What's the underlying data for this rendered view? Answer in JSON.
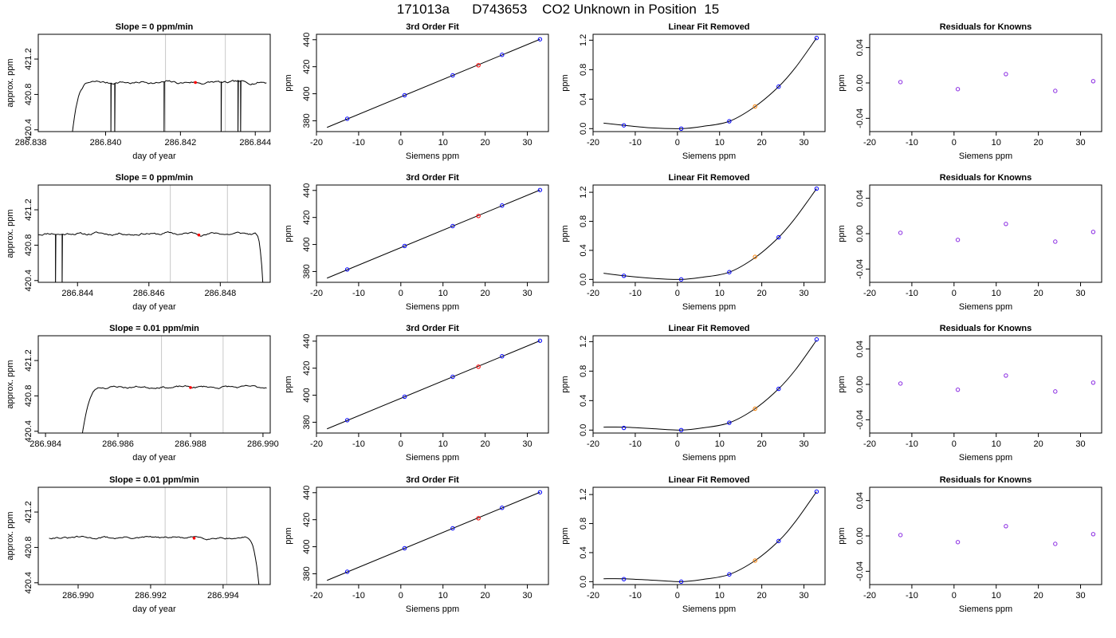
{
  "title": "171013a      D743653    CO2 Unknown in Position  15",
  "labels": {
    "trace_xlabel": "day of year",
    "trace_ylabel": "approx. ppm",
    "fit_title": "3rd Order Fit",
    "fit_xlabel": "Siemens ppm",
    "fit_ylabel": "ppm",
    "linres_title": "Linear Fit Removed",
    "resid_title": "Residuals for Knowns"
  },
  "colors": {
    "standard_point": "#0000ff",
    "unknown_point_fit": "#ff0000",
    "unknown_point_linres": "#ff8000",
    "resid_point": "#8a2be2",
    "window_line": "#c8c8c8",
    "trace_line": "#000000",
    "unknown_trace_marker": "#ff0000"
  },
  "chart_data": [
    {
      "type": "line",
      "panel": "trace",
      "row": 0,
      "title": "Slope =  0  ppm/min",
      "xlabel": "day of year",
      "ylabel": "approx. ppm",
      "xlim": [
        286.8382,
        286.8444
      ],
      "ylim": [
        420.38,
        421.48
      ],
      "xticks": [
        286.838,
        286.84,
        286.842,
        286.844
      ],
      "xtick_labels": [
        "286.838",
        "286.840",
        "286.842",
        "286.844"
      ],
      "yticks": [
        420.4,
        420.8,
        421.2
      ],
      "ytick_labels": [
        "420.4",
        "420.8",
        "421.2"
      ],
      "window_lines": [
        286.8416,
        286.8432
      ],
      "unknown_marker": {
        "x": 286.8424,
        "y": 420.935
      },
      "trace": {
        "x_start": 286.8391,
        "x_end": 286.8443,
        "n": 150,
        "rise": "up",
        "rise_len": 0.0005,
        "settle": 420.935,
        "jitter": 0.012,
        "seed": 7,
        "spikes": [
          286.84015,
          286.84025,
          286.84155,
          286.8431,
          286.84355,
          286.8436
        ]
      }
    },
    {
      "type": "line",
      "panel": "fit",
      "row": 0,
      "title": "3rd Order Fit",
      "xlabel": "Siemens ppm",
      "ylabel": "ppm",
      "xlim": [
        -20,
        35
      ],
      "ylim": [
        372,
        444
      ],
      "xticks": [
        -20,
        -10,
        0,
        10,
        20,
        30
      ],
      "xtick_labels": [
        "-20",
        "-10",
        "0",
        "10",
        "20",
        "30"
      ],
      "yticks": [
        380,
        400,
        420,
        440
      ],
      "ytick_labels": [
        "380",
        "400",
        "420",
        "440"
      ],
      "line": [
        [
          -17.5,
          375.1
        ],
        [
          33.0,
          440.3
        ]
      ],
      "points": [
        [
          -12.7,
          381.5
        ],
        [
          0.9,
          398.9
        ],
        [
          12.3,
          413.6
        ],
        [
          24.0,
          428.8
        ],
        [
          33.0,
          440.3
        ]
      ],
      "unknown": [
        18.4,
        421.1
      ]
    },
    {
      "type": "line",
      "panel": "linres",
      "row": 0,
      "title": "Linear Fit Removed",
      "xlabel": "Siemens ppm",
      "ylabel": "ppm",
      "xlim": [
        -20,
        35
      ],
      "ylim": [
        -0.04,
        1.28
      ],
      "xticks": [
        -20,
        -10,
        0,
        10,
        20,
        30
      ],
      "xtick_labels": [
        "-20",
        "-10",
        "0",
        "10",
        "20",
        "30"
      ],
      "yticks": [
        0.0,
        0.4,
        0.8,
        1.2
      ],
      "ytick_labels": [
        "0.0",
        "0.4",
        "0.8",
        "1.2"
      ],
      "curve_x": [
        -17.5,
        -12.7,
        -6,
        0.9,
        6,
        12.3,
        18.4,
        24.0,
        28,
        33.0
      ],
      "curve_y": [
        0.075,
        0.045,
        0.01,
        0.0,
        0.03,
        0.1,
        0.3,
        0.57,
        0.83,
        1.23
      ],
      "points": [
        [
          -12.7,
          0.045
        ],
        [
          0.9,
          0.0
        ],
        [
          12.3,
          0.1
        ],
        [
          24.0,
          0.57
        ],
        [
          33.0,
          1.23
        ]
      ],
      "unknown": [
        18.4,
        0.3
      ]
    },
    {
      "type": "scatter",
      "panel": "resid",
      "row": 0,
      "title": "Residuals for Knowns",
      "xlabel": "Siemens ppm",
      "ylabel": "ppm",
      "xlim": [
        -20,
        35
      ],
      "ylim": [
        -0.055,
        0.055
      ],
      "xticks": [
        -20,
        -10,
        0,
        10,
        20,
        30
      ],
      "xtick_labels": [
        "-20",
        "-10",
        "0",
        "10",
        "20",
        "30"
      ],
      "yticks": [
        -0.04,
        0.0,
        0.04
      ],
      "ytick_labels": [
        "-0.04",
        "0.00",
        "0.04"
      ],
      "points": [
        [
          -12.7,
          0.001
        ],
        [
          0.9,
          -0.007
        ],
        [
          12.3,
          0.01
        ],
        [
          24.0,
          -0.009
        ],
        [
          33.0,
          0.002
        ]
      ]
    },
    {
      "type": "line",
      "panel": "trace",
      "row": 1,
      "title": "Slope =  0  ppm/min",
      "xlabel": "day of year",
      "ylabel": "approx. ppm",
      "xlim": [
        286.8429,
        286.8494
      ],
      "ylim": [
        420.38,
        421.48
      ],
      "xticks": [
        286.844,
        286.846,
        286.848
      ],
      "xtick_labels": [
        "286.844",
        "286.846",
        "286.848"
      ],
      "yticks": [
        420.4,
        420.8,
        421.2
      ],
      "ytick_labels": [
        "420.4",
        "420.8",
        "421.2"
      ],
      "window_lines": [
        286.8466,
        286.8482
      ],
      "unknown_marker": {
        "x": 286.8474,
        "y": 420.915
      },
      "trace": {
        "x_start": 286.8429,
        "x_end": 286.8492,
        "n": 170,
        "rise": "none",
        "fall": "down",
        "fall_len": 0.00025,
        "settle": 420.93,
        "jitter": 0.012,
        "seed": 11,
        "spikes": [
          286.8434,
          286.84355
        ]
      }
    },
    {
      "type": "line",
      "panel": "fit",
      "row": 1,
      "title": "3rd Order Fit",
      "xlabel": "Siemens ppm",
      "ylabel": "ppm",
      "xlim": [
        -20,
        35
      ],
      "ylim": [
        372,
        444
      ],
      "xticks": [
        -20,
        -10,
        0,
        10,
        20,
        30
      ],
      "xtick_labels": [
        "-20",
        "-10",
        "0",
        "10",
        "20",
        "30"
      ],
      "yticks": [
        380,
        400,
        420,
        440
      ],
      "ytick_labels": [
        "380",
        "400",
        "420",
        "440"
      ],
      "line": [
        [
          -17.5,
          375.1
        ],
        [
          33.0,
          440.3
        ]
      ],
      "points": [
        [
          -12.7,
          381.5
        ],
        [
          0.9,
          398.9
        ],
        [
          12.3,
          413.6
        ],
        [
          24.0,
          428.8
        ],
        [
          33.0,
          440.3
        ]
      ],
      "unknown": [
        18.4,
        421.1
      ]
    },
    {
      "type": "line",
      "panel": "linres",
      "row": 1,
      "title": "Linear Fit Removed",
      "xlabel": "Siemens ppm",
      "ylabel": "ppm",
      "xlim": [
        -20,
        35
      ],
      "ylim": [
        -0.04,
        1.3
      ],
      "xticks": [
        -20,
        -10,
        0,
        10,
        20,
        30
      ],
      "xtick_labels": [
        "-20",
        "-10",
        "0",
        "10",
        "20",
        "30"
      ],
      "yticks": [
        0.0,
        0.4,
        0.8,
        1.2
      ],
      "ytick_labels": [
        "0.0",
        "0.4",
        "0.8",
        "1.2"
      ],
      "curve_x": [
        -17.5,
        -12.7,
        -6,
        0.9,
        6,
        12.3,
        18.4,
        24.0,
        28,
        33.0
      ],
      "curve_y": [
        0.085,
        0.05,
        0.015,
        0.0,
        0.03,
        0.1,
        0.3,
        0.58,
        0.85,
        1.25
      ],
      "points": [
        [
          -12.7,
          0.05
        ],
        [
          0.9,
          0.0
        ],
        [
          12.3,
          0.1
        ],
        [
          24.0,
          0.58
        ],
        [
          33.0,
          1.25
        ]
      ],
      "unknown": [
        18.4,
        0.31
      ]
    },
    {
      "type": "scatter",
      "panel": "resid",
      "row": 1,
      "title": "Residuals for Knowns",
      "xlabel": "Siemens ppm",
      "ylabel": "ppm",
      "xlim": [
        -20,
        35
      ],
      "ylim": [
        -0.055,
        0.055
      ],
      "xticks": [
        -20,
        -10,
        0,
        10,
        20,
        30
      ],
      "xtick_labels": [
        "-20",
        "-10",
        "0",
        "10",
        "20",
        "30"
      ],
      "yticks": [
        -0.04,
        0.0,
        0.04
      ],
      "ytick_labels": [
        "-0.04",
        "0.00",
        "0.04"
      ],
      "points": [
        [
          -12.7,
          0.001
        ],
        [
          0.9,
          -0.007
        ],
        [
          12.3,
          0.011
        ],
        [
          24.0,
          -0.009
        ],
        [
          33.0,
          0.002
        ]
      ]
    },
    {
      "type": "line",
      "panel": "trace",
      "row": 2,
      "title": "Slope =  0.01  ppm/min",
      "xlabel": "day of year",
      "ylabel": "approx. ppm",
      "xlim": [
        286.9838,
        286.9902
      ],
      "ylim": [
        420.38,
        421.48
      ],
      "xticks": [
        286.984,
        286.986,
        286.988,
        286.99
      ],
      "xtick_labels": [
        "286.984",
        "286.986",
        "286.988",
        "286.990"
      ],
      "yticks": [
        420.4,
        420.8,
        421.2
      ],
      "ytick_labels": [
        "420.4",
        "420.8",
        "421.2"
      ],
      "window_lines": [
        286.9872,
        286.9889
      ],
      "unknown_marker": {
        "x": 286.988,
        "y": 420.895
      },
      "trace": {
        "x_start": 286.985,
        "x_end": 286.9901,
        "n": 150,
        "rise": "up",
        "rise_len": 0.0006,
        "settle": 420.9,
        "jitter": 0.01,
        "seed": 23,
        "spikes": []
      }
    },
    {
      "type": "line",
      "panel": "fit",
      "row": 2,
      "title": "3rd Order Fit",
      "xlabel": "Siemens ppm",
      "ylabel": "ppm",
      "xlim": [
        -20,
        35
      ],
      "ylim": [
        372,
        444
      ],
      "xticks": [
        -20,
        -10,
        0,
        10,
        20,
        30
      ],
      "xtick_labels": [
        "-20",
        "-10",
        "0",
        "10",
        "20",
        "30"
      ],
      "yticks": [
        380,
        400,
        420,
        440
      ],
      "ytick_labels": [
        "380",
        "400",
        "420",
        "440"
      ],
      "line": [
        [
          -17.5,
          375.1
        ],
        [
          33.0,
          440.3
        ]
      ],
      "points": [
        [
          -12.7,
          381.5
        ],
        [
          0.9,
          398.9
        ],
        [
          12.3,
          413.6
        ],
        [
          24.0,
          428.8
        ],
        [
          33.0,
          440.3
        ]
      ],
      "unknown": [
        18.4,
        421.1
      ]
    },
    {
      "type": "line",
      "panel": "linres",
      "row": 2,
      "title": "Linear Fit Removed",
      "xlabel": "Siemens ppm",
      "ylabel": "ppm",
      "xlim": [
        -20,
        35
      ],
      "ylim": [
        -0.04,
        1.28
      ],
      "xticks": [
        -20,
        -10,
        0,
        10,
        20,
        30
      ],
      "xtick_labels": [
        "-20",
        "-10",
        "0",
        "10",
        "20",
        "30"
      ],
      "yticks": [
        0.0,
        0.4,
        0.8,
        1.2
      ],
      "ytick_labels": [
        "0.0",
        "0.4",
        "0.8",
        "1.2"
      ],
      "curve_x": [
        -17.5,
        -12.7,
        -6,
        0.9,
        6,
        12.3,
        18.4,
        24.0,
        28,
        33.0
      ],
      "curve_y": [
        0.04,
        0.04,
        0.02,
        0.0,
        0.03,
        0.1,
        0.29,
        0.56,
        0.82,
        1.22
      ],
      "points": [
        [
          -12.7,
          0.03
        ],
        [
          0.9,
          0.0
        ],
        [
          12.3,
          0.1
        ],
        [
          24.0,
          0.56
        ],
        [
          33.0,
          1.23
        ]
      ],
      "unknown": [
        18.4,
        0.29
      ]
    },
    {
      "type": "scatter",
      "panel": "resid",
      "row": 2,
      "title": "Residuals for Knowns",
      "xlabel": "Siemens ppm",
      "ylabel": "ppm",
      "xlim": [
        -20,
        35
      ],
      "ylim": [
        -0.055,
        0.055
      ],
      "xticks": [
        -20,
        -10,
        0,
        10,
        20,
        30
      ],
      "xtick_labels": [
        "-20",
        "-10",
        "0",
        "10",
        "20",
        "30"
      ],
      "yticks": [
        -0.04,
        0.0,
        0.04
      ],
      "ytick_labels": [
        "-0.04",
        "0.00",
        "0.04"
      ],
      "points": [
        [
          -12.7,
          0.001
        ],
        [
          0.9,
          -0.006
        ],
        [
          12.3,
          0.01
        ],
        [
          24.0,
          -0.008
        ],
        [
          33.0,
          0.002
        ]
      ]
    },
    {
      "type": "line",
      "panel": "trace",
      "row": 3,
      "title": "Slope =  0.01  ppm/min",
      "xlabel": "day of year",
      "ylabel": "approx. ppm",
      "xlim": [
        286.9889,
        286.9953
      ],
      "ylim": [
        420.38,
        421.48
      ],
      "xticks": [
        286.99,
        286.992,
        286.994
      ],
      "xtick_labels": [
        "286.990",
        "286.992",
        "286.994"
      ],
      "yticks": [
        420.4,
        420.8,
        421.2
      ],
      "ytick_labels": [
        "420.4",
        "420.8",
        "421.2"
      ],
      "window_lines": [
        286.9924,
        286.9941
      ],
      "unknown_marker": {
        "x": 286.9932,
        "y": 420.905
      },
      "trace": {
        "x_start": 286.9892,
        "x_end": 286.995,
        "n": 160,
        "rise": "none",
        "fall": "down",
        "fall_len": 0.0004,
        "settle": 420.91,
        "jitter": 0.01,
        "seed": 31,
        "spikes": []
      }
    },
    {
      "type": "line",
      "panel": "fit",
      "row": 3,
      "title": "3rd Order Fit",
      "xlabel": "Siemens ppm",
      "ylabel": "ppm",
      "xlim": [
        -20,
        35
      ],
      "ylim": [
        372,
        444
      ],
      "xticks": [
        -20,
        -10,
        0,
        10,
        20,
        30
      ],
      "xtick_labels": [
        "-20",
        "-10",
        "0",
        "10",
        "20",
        "30"
      ],
      "yticks": [
        380,
        400,
        420,
        440
      ],
      "ytick_labels": [
        "380",
        "400",
        "420",
        "440"
      ],
      "line": [
        [
          -17.5,
          375.1
        ],
        [
          33.0,
          440.3
        ]
      ],
      "points": [
        [
          -12.7,
          381.5
        ],
        [
          0.9,
          398.9
        ],
        [
          12.3,
          413.6
        ],
        [
          24.0,
          428.8
        ],
        [
          33.0,
          440.3
        ]
      ],
      "unknown": [
        18.4,
        421.1
      ]
    },
    {
      "type": "line",
      "panel": "linres",
      "row": 3,
      "title": "Linear Fit Removed",
      "xlabel": "Siemens ppm",
      "ylabel": "ppm",
      "xlim": [
        -20,
        35
      ],
      "ylim": [
        -0.04,
        1.3
      ],
      "xticks": [
        -20,
        -10,
        0,
        10,
        20,
        30
      ],
      "xtick_labels": [
        "-20",
        "-10",
        "0",
        "10",
        "20",
        "30"
      ],
      "yticks": [
        0.0,
        0.4,
        0.8,
        1.2
      ],
      "ytick_labels": [
        "0.0",
        "0.4",
        "0.8",
        "1.2"
      ],
      "curve_x": [
        -17.5,
        -12.7,
        -6,
        0.9,
        6,
        12.3,
        18.4,
        24.0,
        28,
        33.0
      ],
      "curve_y": [
        0.04,
        0.04,
        0.02,
        0.0,
        0.03,
        0.1,
        0.29,
        0.56,
        0.83,
        1.24
      ],
      "points": [
        [
          -12.7,
          0.035
        ],
        [
          0.9,
          0.0
        ],
        [
          12.3,
          0.1
        ],
        [
          24.0,
          0.56
        ],
        [
          33.0,
          1.24
        ]
      ],
      "unknown": [
        18.4,
        0.29
      ]
    },
    {
      "type": "scatter",
      "panel": "resid",
      "row": 3,
      "title": "Residuals for Knowns",
      "xlabel": "Siemens ppm",
      "ylabel": "ppm",
      "xlim": [
        -20,
        35
      ],
      "ylim": [
        -0.055,
        0.055
      ],
      "xticks": [
        -20,
        -10,
        0,
        10,
        20,
        30
      ],
      "xtick_labels": [
        "-20",
        "-10",
        "0",
        "10",
        "20",
        "30"
      ],
      "yticks": [
        -0.04,
        0.0,
        0.04
      ],
      "ytick_labels": [
        "-0.04",
        "0.00",
        "0.04"
      ],
      "points": [
        [
          -12.7,
          0.001
        ],
        [
          0.9,
          -0.007
        ],
        [
          12.3,
          0.011
        ],
        [
          24.0,
          -0.009
        ],
        [
          33.0,
          0.002
        ]
      ]
    }
  ]
}
